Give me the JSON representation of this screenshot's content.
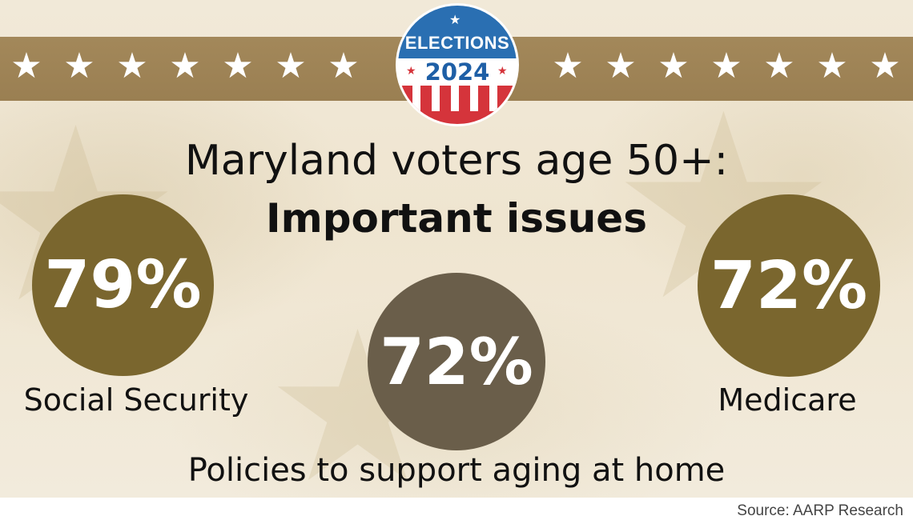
{
  "badge": {
    "title": "ELECTIONS",
    "year": "2024"
  },
  "headline": "Maryland voters age 50+:",
  "subhead": "Important issues",
  "stats": [
    {
      "value": "79%",
      "label": "Social Security",
      "color": "#7a662e"
    },
    {
      "value": "72%",
      "label": "Policies to support aging at home",
      "color": "#6a5e4a"
    },
    {
      "value": "72%",
      "label": "Medicare",
      "color": "#7a662e"
    }
  ],
  "source": "Source: AARP Research",
  "colors": {
    "band": "#9e8455",
    "badge_blue": "#2a6fb2",
    "badge_red": "#d5343b"
  },
  "icons": {
    "band_star": "star-icon"
  }
}
